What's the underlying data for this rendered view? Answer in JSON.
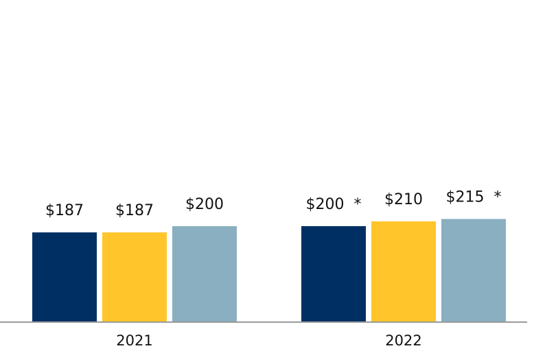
{
  "chart_data": {
    "type": "bar",
    "title": "",
    "xlabel": "",
    "ylabel": "",
    "categories": [
      "2021",
      "2022"
    ],
    "series": [
      {
        "color": "#003063",
        "values": [
          187,
          200
        ],
        "labels": [
          "$187",
          "$200  *"
        ]
      },
      {
        "color": "#FFC52A",
        "values": [
          187,
          210
        ],
        "labels": [
          "$187",
          "$210"
        ]
      },
      {
        "color": "#8AAFC0",
        "values": [
          200,
          215
        ],
        "labels": [
          "$200",
          "$215  *"
        ]
      }
    ],
    "ylim": [
      0,
      225
    ],
    "grid": false,
    "axis_color": "#9a9a9a"
  }
}
